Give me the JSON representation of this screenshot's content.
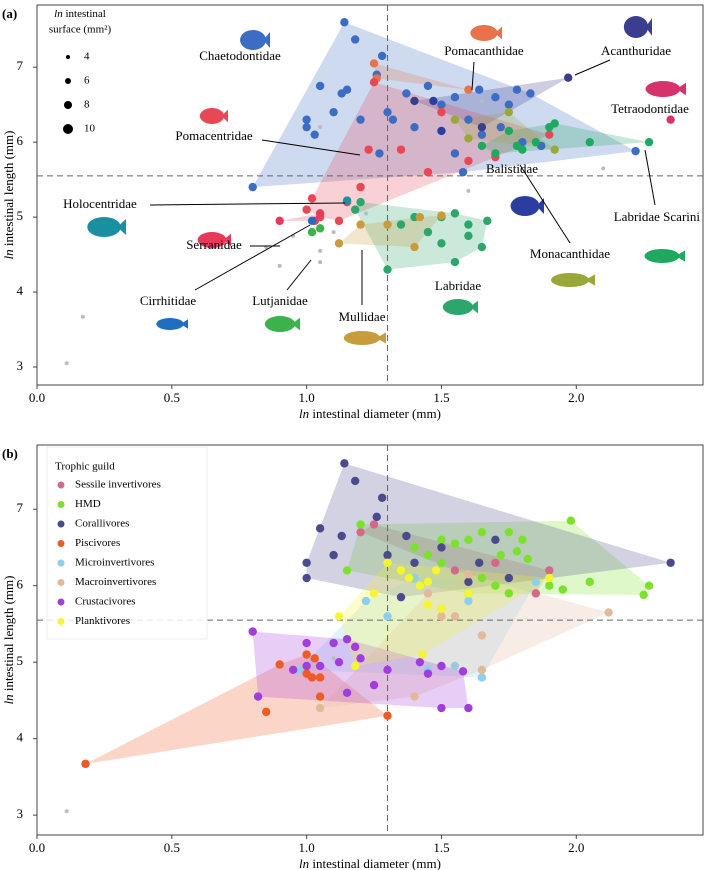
{
  "chart_data": [
    {
      "type": "scatter",
      "panel_label": "(a)",
      "x_label": {
        "italic": "ln",
        "text": "intestinal diameter (mm)"
      },
      "y_label": {
        "italic": "ln",
        "text": "intestinal length (mm)"
      },
      "xlim": [
        0,
        2.47
      ],
      "ylim": [
        2.76,
        7.83
      ],
      "xticks": [
        {
          "value": 0,
          "label": "0.0"
        },
        0.5,
        {
          "value": 1,
          "label": "1.0"
        },
        1.5,
        {
          "value": 2,
          "label": "2.0"
        }
      ],
      "yticks": [
        3,
        4,
        5,
        6,
        7
      ],
      "reference_lines": {
        "x": 1.3,
        "y": 5.55
      },
      "hulls": true,
      "size_legend": {
        "title": [
          "ln",
          "intestinal",
          "surface (mm²)"
        ],
        "values": [
          4,
          6,
          8,
          10
        ]
      },
      "series": [
        {
          "name": "Chaetodontidae",
          "color": "#3d6cc4",
          "x": [
            0.8,
            1.14,
            1.18,
            1.28,
            1.26,
            1.0,
            1.05,
            1.13,
            1.15,
            1.1,
            1.2,
            1.3,
            1.32,
            1.27,
            1.37,
            1.4,
            1.45,
            1.5,
            1.55,
            1.6,
            1.64,
            1.7,
            1.78,
            1.75,
            1.83,
            1.65,
            1.72,
            1.8,
            1.87,
            2.22,
            1.55,
            1.58,
            1.0,
            1.03
          ],
          "values": [
            5.4,
            7.6,
            7.37,
            7.15,
            6.9,
            6.3,
            6.75,
            6.65,
            6.7,
            6.4,
            6.3,
            6.4,
            6.3,
            5.85,
            6.65,
            6.2,
            6.75,
            6.5,
            6.6,
            6.3,
            6.7,
            6.6,
            6.7,
            6.5,
            6.65,
            6.1,
            6.2,
            6.0,
            5.95,
            5.88,
            5.85,
            5.6,
            6.2,
            6.1
          ]
        },
        {
          "name": "Pomacanthidae",
          "color": "#e8734a",
          "x": [
            1.6,
            1.26,
            1.25
          ],
          "values": [
            6.7,
            6.85,
            7.05
          ]
        },
        {
          "name": "Acanthuridae",
          "color": "#3b3d8f",
          "x": [
            1.97,
            1.4,
            1.65
          ],
          "values": [
            6.86,
            6.55,
            6.2
          ]
        },
        {
          "name": "Tetraodontidae",
          "color": "#d6336c",
          "x": [
            2.35
          ],
          "values": [
            6.3
          ]
        },
        {
          "name": "Pomacentridae",
          "color": "#e84855",
          "x": [
            1.0,
            1.02,
            1.12,
            1.2,
            1.25,
            1.23,
            1.35,
            1.45,
            1.5,
            1.6,
            1.7,
            1.9,
            1.15,
            1.05
          ],
          "values": [
            5.1,
            5.25,
            4.95,
            5.4,
            6.8,
            5.9,
            5.9,
            5.6,
            6.4,
            5.75,
            5.8,
            6.1,
            5.2,
            5.0
          ]
        },
        {
          "name": "Labridae",
          "color": "#2ca66a",
          "x": [
            1.3,
            1.35,
            1.5,
            1.55,
            1.6,
            1.65,
            1.67,
            1.55,
            1.5,
            1.4,
            1.45,
            1.6,
            1.2,
            1.18
          ],
          "values": [
            4.3,
            4.9,
            5.0,
            5.05,
            4.9,
            4.6,
            4.95,
            4.4,
            4.65,
            5.0,
            4.8,
            4.75,
            5.2,
            5.1
          ]
        },
        {
          "name": "Labridae Scarini",
          "color": "#1fa860",
          "x": [
            1.75,
            1.78,
            1.85,
            1.9,
            2.05,
            2.27,
            1.7,
            1.65,
            1.8,
            1.92
          ],
          "values": [
            6.15,
            5.95,
            6.0,
            6.2,
            6.0,
            6.0,
            5.85,
            5.95,
            5.9,
            6.25
          ]
        },
        {
          "name": "Monacanthidae",
          "color": "#9aa83a",
          "x": [
            1.55,
            1.6,
            1.92,
            1.75
          ],
          "values": [
            6.3,
            6.05,
            5.9,
            6.4
          ]
        },
        {
          "name": "Balistidae",
          "color": "#2b3ea0",
          "x": [
            1.47,
            1.5
          ],
          "values": [
            6.55,
            6.15
          ]
        },
        {
          "name": "Holocentridae",
          "color": "#1a8fa0",
          "x": [
            1.15
          ],
          "values": [
            5.22
          ]
        },
        {
          "name": "Serranidae",
          "color": "#e63a5a",
          "x": [
            1.03,
            0.9,
            1.05
          ],
          "values": [
            4.95,
            4.95,
            5.05
          ]
        },
        {
          "name": "Cirrhitidae",
          "color": "#1f6fc0",
          "x": [
            1.02
          ],
          "values": [
            4.95
          ]
        },
        {
          "name": "Lutjanidae",
          "color": "#3bb34a",
          "x": [
            1.02,
            1.05
          ],
          "values": [
            4.8,
            4.85
          ]
        },
        {
          "name": "Mullidae",
          "color": "#c89b3c",
          "x": [
            1.12,
            1.2,
            1.3,
            1.42,
            1.5,
            1.4
          ],
          "values": [
            4.65,
            4.9,
            4.9,
            5.0,
            5.02,
            4.6
          ]
        },
        {
          "color": "#bbbbbb",
          "x": [
            0.11,
            0.17,
            0.85,
            0.9,
            1.05,
            1.05,
            1.1,
            1.22,
            1.6,
            1.65,
            2.1,
            1.05,
            0.95
          ],
          "values": [
            3.05,
            3.67,
            4.6,
            4.35,
            4.4,
            4.55,
            4.8,
            5.05,
            5.35,
            6.55,
            5.65,
            6.2,
            4.75
          ]
        }
      ]
    },
    {
      "type": "scatter",
      "panel_label": "(b)",
      "x_label": {
        "italic": "ln",
        "text": "intestinal diameter (mm)"
      },
      "y_label": {
        "italic": "ln",
        "text": "intestinal length (mm)"
      },
      "xlim": [
        0,
        2.47
      ],
      "ylim": [
        2.74,
        7.84
      ],
      "xticks": [
        {
          "value": 0,
          "label": "0.0"
        },
        0.5,
        {
          "value": 1,
          "label": "1.0"
        },
        1.5,
        {
          "value": 2,
          "label": "2.0"
        }
      ],
      "yticks": [
        3,
        4,
        5,
        6,
        7
      ],
      "reference_lines": {
        "x": 1.3,
        "y": 5.55
      },
      "hulls": true,
      "legend_title": "Trophic guild",
      "legend": "top-left",
      "series": [
        {
          "name": "Sessile invertivores",
          "color": "#d4688a",
          "x": [
            1.25,
            1.2,
            1.55,
            1.9,
            1.85,
            1.7
          ],
          "values": [
            6.8,
            6.7,
            6.2,
            6.2,
            5.9,
            6.3
          ]
        },
        {
          "name": "HMD",
          "color": "#7be22c",
          "x": [
            1.15,
            1.2,
            1.4,
            1.5,
            1.55,
            1.6,
            1.65,
            1.75,
            1.8,
            1.78,
            1.72,
            1.82,
            1.98,
            2.05,
            2.27,
            2.25,
            1.65,
            1.7,
            1.75,
            1.9,
            1.95,
            1.5,
            1.45,
            1.6
          ],
          "values": [
            6.2,
            6.8,
            6.5,
            6.6,
            6.55,
            6.6,
            6.7,
            6.7,
            6.6,
            6.45,
            6.4,
            6.35,
            6.85,
            6.05,
            6.0,
            5.88,
            6.1,
            6.0,
            5.9,
            6.0,
            5.95,
            6.3,
            6.4,
            5.9
          ]
        },
        {
          "name": "Corallivores",
          "color": "#4b4a8c",
          "x": [
            1.14,
            1.18,
            1.28,
            1.26,
            1.0,
            1.05,
            1.13,
            1.1,
            1.3,
            1.37,
            1.4,
            1.5,
            1.64,
            1.7,
            1.75,
            1.35,
            2.35,
            1.6,
            1.0
          ],
          "values": [
            7.6,
            7.37,
            7.15,
            6.9,
            6.3,
            6.75,
            6.65,
            6.4,
            6.4,
            6.65,
            6.3,
            6.5,
            6.3,
            6.6,
            6.1,
            5.85,
            6.3,
            6.05,
            6.1
          ]
        },
        {
          "name": "Piscivores",
          "color": "#f05a24",
          "x": [
            0.18,
            0.85,
            0.9,
            1.0,
            1.02,
            1.03,
            1.05,
            1.3,
            1.0,
            1.05
          ],
          "values": [
            3.67,
            4.35,
            4.97,
            4.85,
            4.8,
            5.05,
            4.55,
            4.3,
            5.1,
            4.8
          ]
        },
        {
          "name": "Microinvertivores",
          "color": "#8ecfee",
          "x": [
            1.22,
            1.3,
            1.4,
            1.5,
            1.6,
            1.65,
            1.85,
            1.55,
            1.45,
            0.97
          ],
          "values": [
            5.8,
            5.6,
            6.1,
            5.7,
            5.8,
            4.8,
            6.05,
            4.95,
            4.9,
            4.9
          ]
        },
        {
          "name": "Macroinvertivores",
          "color": "#e2b99a",
          "x": [
            1.05,
            1.4,
            1.5,
            1.55,
            1.65,
            1.65,
            2.12,
            1.45,
            1.6
          ],
          "values": [
            4.4,
            4.55,
            5.6,
            5.6,
            5.35,
            4.9,
            5.65,
            5.9,
            6.15
          ]
        },
        {
          "name": "Crustacivores",
          "color": "#a23ddd",
          "x": [
            0.8,
            0.82,
            0.95,
            1.0,
            1.05,
            1.1,
            1.12,
            1.15,
            1.18,
            1.2,
            1.25,
            1.3,
            1.42,
            1.45,
            1.5,
            1.6,
            1.58,
            1.0,
            1.15,
            1.5
          ],
          "values": [
            5.4,
            4.55,
            4.9,
            5.25,
            4.95,
            5.25,
            5.0,
            5.3,
            5.2,
            5.05,
            4.7,
            4.9,
            5.0,
            4.85,
            4.95,
            4.4,
            4.88,
            4.95,
            4.6,
            4.4
          ]
        },
        {
          "name": "Planktivores",
          "color": "#f5f532",
          "x": [
            1.3,
            1.35,
            1.38,
            1.42,
            1.45,
            1.48,
            1.25,
            1.12,
            1.45,
            1.5,
            1.43,
            1.18,
            1.6,
            1.9
          ],
          "values": [
            6.3,
            6.2,
            6.1,
            6.0,
            6.05,
            6.2,
            5.9,
            5.6,
            5.75,
            5.7,
            5.1,
            4.95,
            5.9,
            6.1
          ]
        },
        {
          "color": "#bbbbbb",
          "x": [
            0.11,
            1.1,
            1.55
          ],
          "values": [
            3.05,
            5.05,
            4.95
          ]
        }
      ]
    }
  ]
}
